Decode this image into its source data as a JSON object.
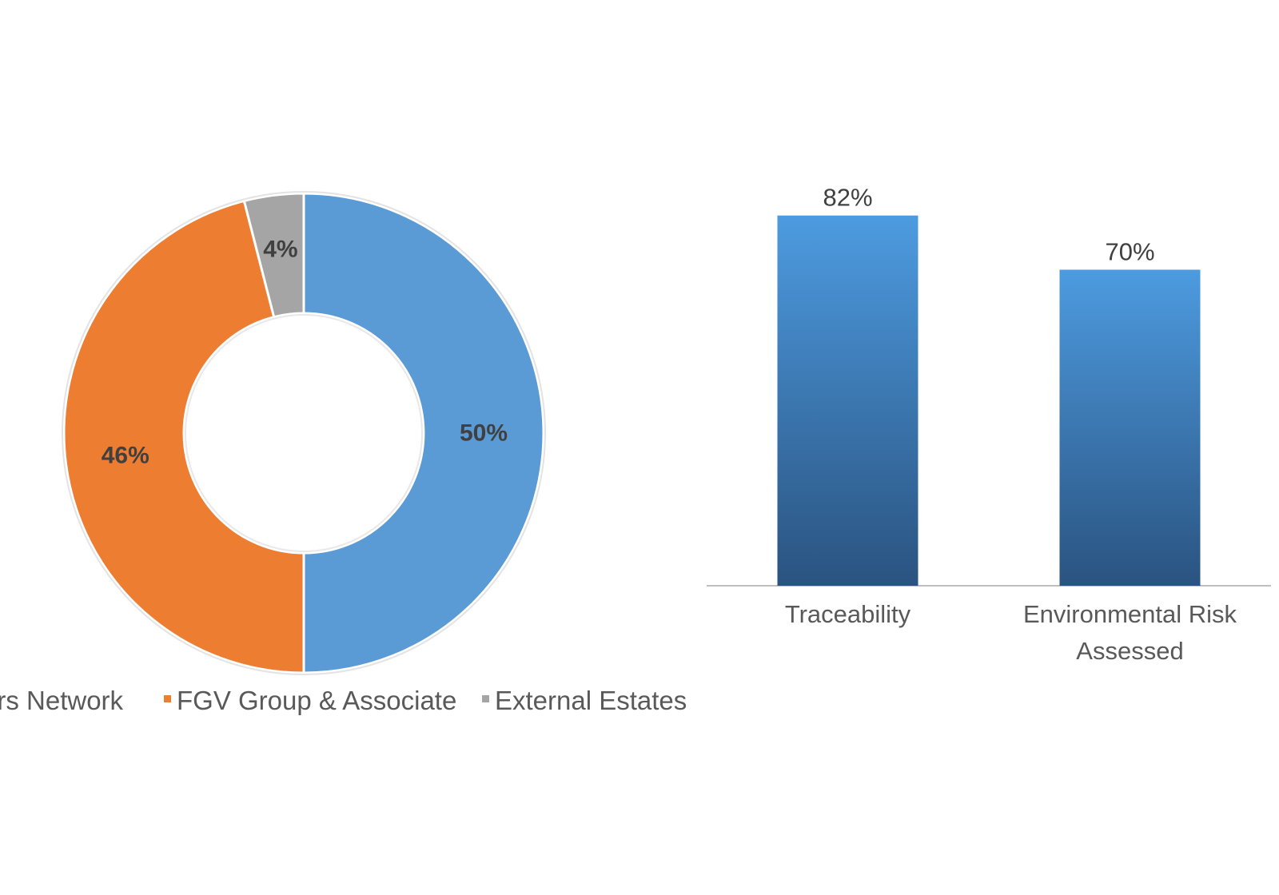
{
  "colors": {
    "background": "#ffffff",
    "segment_blue": "#5b9bd5",
    "segment_orange": "#ed7d31",
    "segment_gray": "#a5a5a5",
    "bar_top": "#4d9be0",
    "bar_bottom": "#2a5380",
    "axis": "#bfbfbf",
    "label_dark": "#404040",
    "label_text": "#595959"
  },
  "chart_data": [
    {
      "type": "pie",
      "variant": "doughnut",
      "title": "",
      "slices": [
        {
          "name": "ers Network",
          "value": 50,
          "label": "50%",
          "color": "#5b9bd5"
        },
        {
          "name": "FGV Group & Associate",
          "value": 46,
          "label": "46%",
          "color": "#ed7d31"
        },
        {
          "name": "External Estates",
          "value": 4,
          "label": "4%",
          "color": "#a5a5a5"
        }
      ],
      "legend": {
        "placement": "bottom",
        "items": [
          "ers Network",
          "FGV Group & Associate",
          "External Estates"
        ]
      }
    },
    {
      "type": "bar",
      "title": "",
      "xlabel": "",
      "ylabel": "",
      "categories": [
        "Traceability",
        "Environmental Risk Assessed"
      ],
      "category_lines": [
        [
          "Traceability"
        ],
        [
          "Environmental Risk",
          "Assessed"
        ]
      ],
      "values": [
        82,
        70
      ],
      "data_labels": [
        "82%",
        "70%"
      ],
      "ylim": [
        0,
        100
      ],
      "grid": false,
      "y_axis_visible": false
    }
  ]
}
